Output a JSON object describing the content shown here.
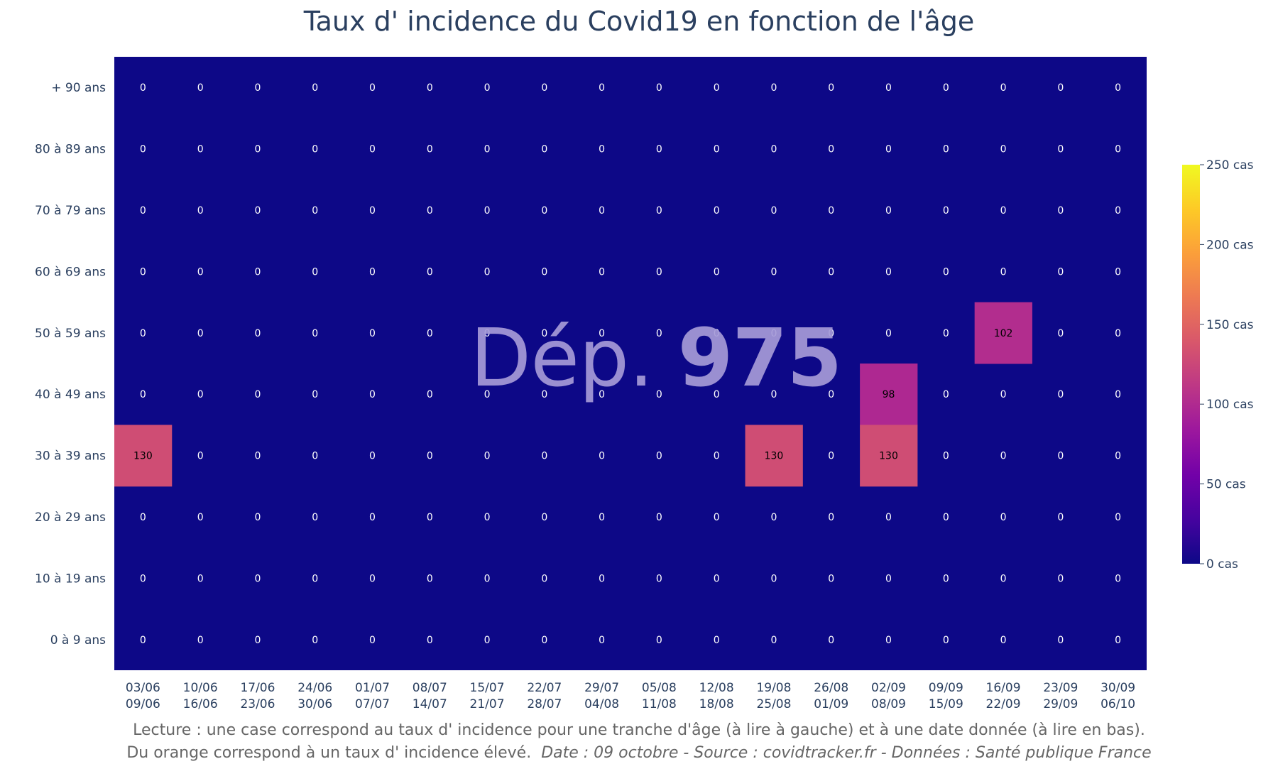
{
  "chart_data": {
    "type": "heatmap",
    "title": "Taux d' incidence du Covid19 en fonction de l'âge",
    "watermark_prefix": "Dép.",
    "watermark_number": "975",
    "y_categories": [
      "+ 90 ans",
      "80 à 89 ans",
      "70 à 79 ans",
      "60 à 69 ans",
      "50 à 59 ans",
      "40 à 49 ans",
      "30 à 39 ans",
      "20 à 29 ans",
      "10 à 19 ans",
      "0 à 9 ans"
    ],
    "x_categories": [
      [
        "03/06",
        "09/06"
      ],
      [
        "10/06",
        "16/06"
      ],
      [
        "17/06",
        "23/06"
      ],
      [
        "24/06",
        "30/06"
      ],
      [
        "01/07",
        "07/07"
      ],
      [
        "08/07",
        "14/07"
      ],
      [
        "15/07",
        "21/07"
      ],
      [
        "22/07",
        "28/07"
      ],
      [
        "29/07",
        "04/08"
      ],
      [
        "05/08",
        "11/08"
      ],
      [
        "12/08",
        "18/08"
      ],
      [
        "19/08",
        "25/08"
      ],
      [
        "26/08",
        "01/09"
      ],
      [
        "02/09",
        "08/09"
      ],
      [
        "09/09",
        "15/09"
      ],
      [
        "16/09",
        "22/09"
      ],
      [
        "23/09",
        "29/09"
      ],
      [
        "30/09",
        "06/10"
      ]
    ],
    "z": [
      [
        0,
        0,
        0,
        0,
        0,
        0,
        0,
        0,
        0,
        0,
        0,
        0,
        0,
        0,
        0,
        0,
        0,
        0
      ],
      [
        0,
        0,
        0,
        0,
        0,
        0,
        0,
        0,
        0,
        0,
        0,
        0,
        0,
        0,
        0,
        0,
        0,
        0
      ],
      [
        0,
        0,
        0,
        0,
        0,
        0,
        0,
        0,
        0,
        0,
        0,
        0,
        0,
        0,
        0,
        0,
        0,
        0
      ],
      [
        0,
        0,
        0,
        0,
        0,
        0,
        0,
        0,
        0,
        0,
        0,
        0,
        0,
        0,
        0,
        0,
        0,
        0
      ],
      [
        0,
        0,
        0,
        0,
        0,
        0,
        0,
        0,
        0,
        0,
        0,
        0,
        0,
        0,
        0,
        102,
        0,
        0
      ],
      [
        0,
        0,
        0,
        0,
        0,
        0,
        0,
        0,
        0,
        0,
        0,
        0,
        0,
        98,
        0,
        0,
        0,
        0
      ],
      [
        130,
        0,
        0,
        0,
        0,
        0,
        0,
        0,
        0,
        0,
        0,
        130,
        0,
        130,
        0,
        0,
        0,
        0
      ],
      [
        0,
        0,
        0,
        0,
        0,
        0,
        0,
        0,
        0,
        0,
        0,
        0,
        0,
        0,
        0,
        0,
        0,
        0
      ],
      [
        0,
        0,
        0,
        0,
        0,
        0,
        0,
        0,
        0,
        0,
        0,
        0,
        0,
        0,
        0,
        0,
        0,
        0
      ],
      [
        0,
        0,
        0,
        0,
        0,
        0,
        0,
        0,
        0,
        0,
        0,
        0,
        0,
        0,
        0,
        0,
        0,
        0
      ]
    ],
    "zmin": 0,
    "zmax": 250,
    "colorscale": "Plasma",
    "colorbar_ticks": [
      0,
      50,
      100,
      150,
      200,
      250
    ],
    "colorbar_tick_labels": [
      "0 cas",
      "50 cas",
      "100 cas",
      "150 cas",
      "200 cas",
      "250 cas"
    ],
    "colors": {
      "low": "#0d0887",
      "mid": "#cc4778",
      "high": "#f0f921"
    }
  },
  "caption": {
    "line1": "Lecture : une case correspond au taux d' incidence pour une tranche d'âge (à lire à gauche) et à une date donnée (à lire en bas).",
    "line2_plain": "Du orange correspond à un taux d' incidence élevé.",
    "line2_italic": "Date : 09 octobre - Source : covidtracker.fr - Données : Santé publique France"
  }
}
